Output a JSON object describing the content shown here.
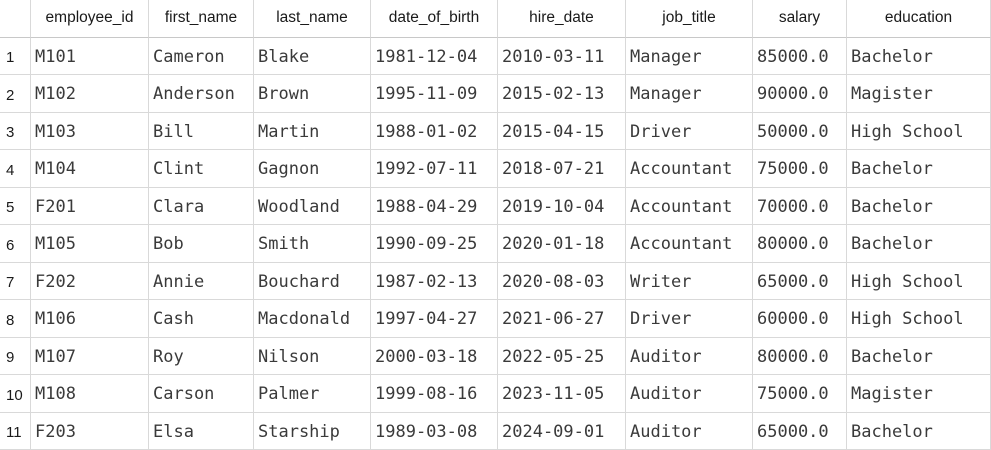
{
  "table": {
    "columns": [
      "employee_id",
      "first_name",
      "last_name",
      "date_of_birth",
      "hire_date",
      "job_title",
      "salary",
      "education"
    ],
    "rows": [
      {
        "num": "1",
        "cells": [
          "M101",
          "Cameron",
          "Blake",
          "1981-12-04",
          "2010-03-11",
          "Manager",
          "85000.0",
          "Bachelor"
        ]
      },
      {
        "num": "2",
        "cells": [
          "M102",
          "Anderson",
          "Brown",
          "1995-11-09",
          "2015-02-13",
          "Manager",
          "90000.0",
          "Magister"
        ]
      },
      {
        "num": "3",
        "cells": [
          "M103",
          "Bill",
          "Martin",
          "1988-01-02",
          "2015-04-15",
          "Driver",
          "50000.0",
          "High School"
        ]
      },
      {
        "num": "4",
        "cells": [
          "M104",
          "Clint",
          "Gagnon",
          "1992-07-11",
          "2018-07-21",
          "Accountant",
          "75000.0",
          "Bachelor"
        ]
      },
      {
        "num": "5",
        "cells": [
          "F201",
          "Clara",
          "Woodland",
          "1988-04-29",
          "2019-10-04",
          "Accountant",
          "70000.0",
          "Bachelor"
        ]
      },
      {
        "num": "6",
        "cells": [
          "M105",
          "Bob",
          "Smith",
          "1990-09-25",
          "2020-01-18",
          "Accountant",
          "80000.0",
          "Bachelor"
        ]
      },
      {
        "num": "7",
        "cells": [
          "F202",
          "Annie",
          "Bouchard",
          "1987-02-13",
          "2020-08-03",
          "Writer",
          "65000.0",
          "High School"
        ]
      },
      {
        "num": "8",
        "cells": [
          "M106",
          "Cash",
          "Macdonald",
          "1997-04-27",
          "2021-06-27",
          "Driver",
          "60000.0",
          "High School"
        ]
      },
      {
        "num": "9",
        "cells": [
          "M107",
          "Roy",
          "Nilson",
          "2000-03-18",
          "2022-05-25",
          "Auditor",
          "80000.0",
          "Bachelor"
        ]
      },
      {
        "num": "10",
        "cells": [
          "M108",
          "Carson",
          "Palmer",
          "1999-08-16",
          "2023-11-05",
          "Auditor",
          "75000.0",
          "Magister"
        ]
      },
      {
        "num": "11",
        "cells": [
          "F203",
          "Elsa",
          "Starship",
          "1989-03-08",
          "2024-09-01",
          "Auditor",
          "65000.0",
          "Bachelor"
        ]
      }
    ]
  }
}
